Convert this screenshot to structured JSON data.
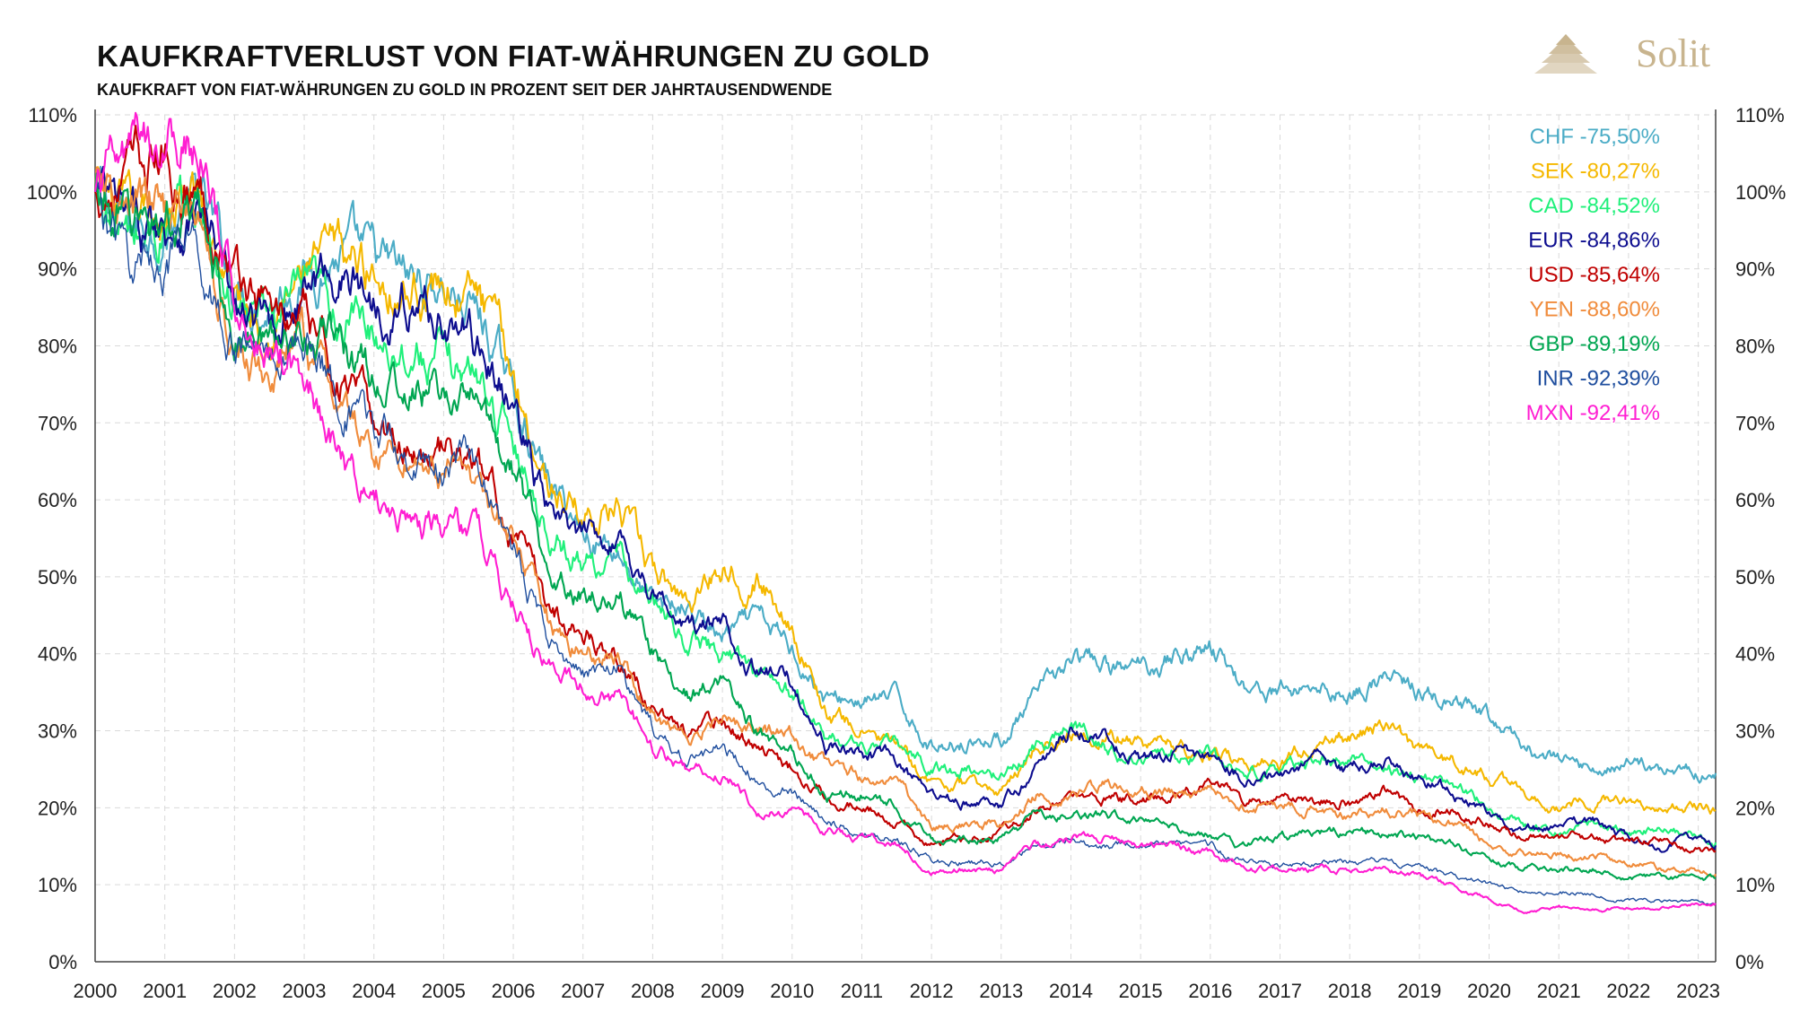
{
  "header": {
    "title": "KAUFKRAFTVERLUST VON FIAT-WÄHRUNGEN ZU GOLD",
    "subtitle": "KAUFKRAFT VON FIAT-WÄHRUNGEN ZU GOLD IN PROZENT SEIT DER JAHRTAUSENDWENDE",
    "brand": "Solit"
  },
  "colors": {
    "CHF": "#4bacc6",
    "SEK": "#f5b800",
    "CAD": "#1ff07a",
    "EUR": "#0d0d8f",
    "USD": "#c00000",
    "YEN": "#f08c3c",
    "GBP": "#00a651",
    "INR": "#1f4e9e",
    "MXN": "#ff1ed2",
    "logo": "#c8b48e"
  },
  "chart_data": {
    "type": "line",
    "title": "KAUFKRAFTVERLUST VON FIAT-WÄHRUNGEN ZU GOLD",
    "subtitle": "KAUFKRAFT VON FIAT-WÄHRUNGEN ZU GOLD IN PROZENT SEIT DER JAHRTAUSENDWENDE",
    "xlabel": "",
    "ylabel": "",
    "ylim": [
      0,
      110
    ],
    "xlim": [
      2000,
      2023.25
    ],
    "grid": true,
    "legend_position": "top-right",
    "y_ticks": [
      "0%",
      "10%",
      "20%",
      "30%",
      "40%",
      "50%",
      "60%",
      "70%",
      "80%",
      "90%",
      "100%",
      "110%"
    ],
    "x_ticks": [
      "2000",
      "2001",
      "2002",
      "2003",
      "2004",
      "2005",
      "2006",
      "2007",
      "2008",
      "2009",
      "2010",
      "2011",
      "2012",
      "2013",
      "2014",
      "2015",
      "2016",
      "2017",
      "2018",
      "2019",
      "2020",
      "2021",
      "2022",
      "2023"
    ],
    "x": [
      2000,
      2000.5,
      2001,
      2001.5,
      2002,
      2002.5,
      2003,
      2003.5,
      2004,
      2004.5,
      2005,
      2005.5,
      2006,
      2006.5,
      2007,
      2007.5,
      2008,
      2008.5,
      2009,
      2009.5,
      2010,
      2010.5,
      2011,
      2011.5,
      2012,
      2012.5,
      2013,
      2013.5,
      2014,
      2014.5,
      2015,
      2015.5,
      2016,
      2016.5,
      2017,
      2017.5,
      2018,
      2018.5,
      2019,
      2019.5,
      2020,
      2020.5,
      2021,
      2021.5,
      2022,
      2022.5,
      2023,
      2023.2
    ],
    "series": [
      {
        "name": "CHF",
        "label": "CHF -75,50%",
        "values": [
          100,
          95,
          96,
          99,
          88,
          86,
          90,
          92,
          90,
          88,
          88,
          84,
          74,
          62,
          56,
          54,
          46,
          46,
          42,
          44,
          41,
          34,
          34,
          34,
          28,
          29,
          29,
          34,
          39,
          38,
          38,
          40,
          41,
          36,
          35,
          36,
          35,
          37,
          35,
          33,
          31,
          28,
          26,
          25,
          26,
          25,
          25,
          24.5
        ]
      },
      {
        "name": "SEK",
        "label": "SEK -80,27%",
        "values": [
          100,
          95,
          97,
          99,
          86,
          84,
          89,
          91,
          90,
          88,
          88,
          86,
          76,
          62,
          58,
          59,
          50,
          47,
          52,
          50,
          44,
          32,
          30,
          28,
          23,
          23,
          22,
          28,
          30,
          30,
          28,
          28,
          27,
          26,
          26,
          28,
          29,
          31,
          27,
          26,
          24,
          22,
          20,
          21,
          21,
          20,
          20,
          19.7
        ]
      },
      {
        "name": "CAD",
        "label": "CAD -84,52%",
        "values": [
          100,
          93,
          95,
          97,
          85,
          83,
          86,
          84,
          82,
          80,
          78,
          76,
          68,
          56,
          52,
          52,
          46,
          42,
          40,
          38,
          35,
          29,
          28,
          28,
          25,
          25,
          24,
          28,
          31,
          28,
          26,
          27,
          27,
          25,
          25,
          26,
          26,
          25,
          24,
          23,
          20,
          18,
          17,
          18,
          17,
          17,
          16,
          15.5
        ]
      },
      {
        "name": "EUR",
        "label": "EUR -84,86%",
        "values": [
          100,
          94,
          96,
          98,
          84,
          82,
          88,
          90,
          86,
          86,
          84,
          80,
          72,
          58,
          54,
          56,
          48,
          43,
          44,
          38,
          36,
          28,
          27,
          26,
          21,
          21,
          20,
          25,
          30,
          29,
          26,
          27,
          26,
          24,
          24,
          26,
          25,
          26,
          24,
          22,
          19,
          17,
          17,
          18,
          16,
          15,
          16,
          15.1
        ]
      },
      {
        "name": "USD",
        "label": "USD -85,64%",
        "values": [
          100,
          102,
          104,
          100,
          90,
          85,
          83,
          76,
          70,
          68,
          66,
          64,
          56,
          46,
          43,
          40,
          33,
          30,
          31,
          28,
          25,
          22,
          20,
          18,
          15,
          16,
          17,
          20,
          21,
          21,
          21,
          22,
          23,
          21,
          21,
          21,
          21,
          22,
          20,
          20,
          18,
          16,
          16,
          16,
          15,
          16,
          15,
          14.4
        ]
      },
      {
        "name": "YEN",
        "label": "YEN -88,60%",
        "values": [
          100,
          96,
          98,
          96,
          78,
          76,
          80,
          72,
          66,
          66,
          64,
          62,
          54,
          44,
          40,
          40,
          32,
          28,
          33,
          30,
          29,
          25,
          24,
          23,
          18,
          18,
          18,
          22,
          22,
          23,
          22,
          22,
          22,
          20,
          20,
          20,
          19,
          20,
          19,
          18,
          15,
          14,
          14,
          14,
          13,
          12,
          12,
          11.4
        ]
      },
      {
        "name": "GBP",
        "label": "GBP -89,19%",
        "values": [
          100,
          95,
          97,
          95,
          82,
          80,
          84,
          80,
          76,
          74,
          74,
          72,
          64,
          52,
          48,
          48,
          40,
          35,
          36,
          30,
          27,
          22,
          22,
          20,
          16,
          16,
          16,
          19,
          19,
          19,
          18,
          17,
          17,
          15,
          16,
          17,
          17,
          17,
          16,
          15,
          13,
          12,
          12,
          12,
          11,
          11,
          11,
          10.8
        ]
      },
      {
        "name": "INR",
        "label": "INR -92,39%",
        "values": [
          100,
          90,
          92,
          92,
          80,
          78,
          82,
          74,
          68,
          66,
          64,
          64,
          54,
          42,
          38,
          38,
          30,
          26,
          28,
          24,
          22,
          18,
          17,
          16,
          13,
          13,
          13,
          15,
          16,
          15,
          15,
          15,
          15,
          13,
          13,
          13,
          13,
          13,
          12,
          11,
          10,
          9,
          9,
          9,
          8,
          8,
          8,
          7.6
        ]
      },
      {
        "name": "MXN",
        "label": "MXN -92,41%",
        "values": [
          100,
          104,
          108,
          106,
          86,
          80,
          78,
          66,
          60,
          58,
          56,
          56,
          46,
          38,
          36,
          34,
          28,
          25,
          25,
          20,
          19,
          17,
          16,
          15,
          12,
          12,
          12,
          15,
          16,
          16,
          15,
          15,
          14,
          12,
          12,
          12,
          12,
          12,
          11,
          10,
          8,
          6.5,
          7,
          7,
          7,
          7,
          7.5,
          7.6
        ]
      }
    ]
  }
}
